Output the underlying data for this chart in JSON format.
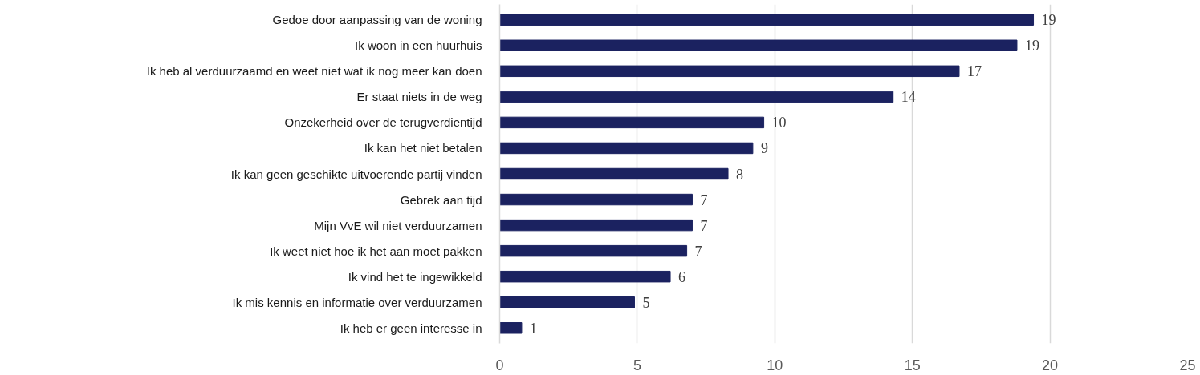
{
  "chart_data": {
    "type": "bar",
    "orientation": "horizontal",
    "categories": [
      "Gedoe door aanpassing van de woning",
      "Ik woon in een huurhuis",
      "Ik heb al verduurzaamd en weet niet wat ik nog meer kan doen",
      "Er staat niets in de weg",
      "Onzekerheid over de terugverdientijd",
      "Ik kan het niet betalen",
      "Ik kan geen geschikte uitvoerende partij vinden",
      "Gebrek aan tijd",
      "Mijn VvE wil niet verduurzamen",
      "Ik weet niet hoe ik het aan moet pakken",
      "Ik vind het te ingewikkeld",
      "Ik mis kennis en informatie over verduurzamen",
      "Ik heb er geen interesse in"
    ],
    "values": [
      19.4,
      18.8,
      16.7,
      14.3,
      9.6,
      9.2,
      8.3,
      7.0,
      7.0,
      6.8,
      6.2,
      4.9,
      0.8
    ],
    "value_labels": [
      "19",
      "19",
      "17",
      "14",
      "10",
      "9",
      "8",
      "7",
      "7",
      "7",
      "6",
      "5",
      "1"
    ],
    "color": "#1b2260",
    "xlim": [
      0,
      25
    ],
    "xticks": [
      0,
      5,
      10,
      15,
      20,
      25
    ],
    "grid": "x"
  }
}
